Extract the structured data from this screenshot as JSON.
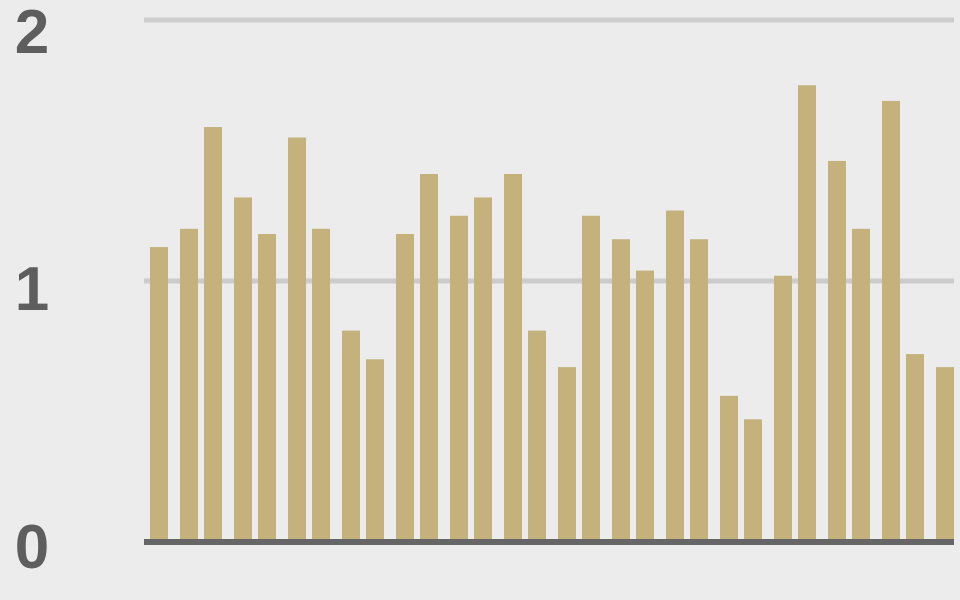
{
  "chart_data": {
    "type": "bar",
    "title": "",
    "xlabel": "",
    "ylabel": "",
    "ylim": [
      0,
      2
    ],
    "yticks": [
      "0",
      "1",
      "2"
    ],
    "grid": true,
    "colors": {
      "bar": "#c5b17b",
      "grid": "#cccccc",
      "axis": "#666666",
      "background": "#ececec",
      "tick_label": "#5e5e5e"
    },
    "values": [
      1.13,
      1.2,
      1.59,
      1.32,
      1.18,
      1.55,
      1.2,
      0.81,
      0.7,
      1.18,
      1.41,
      1.25,
      1.32,
      1.41,
      0.81,
      0.67,
      1.25,
      1.16,
      1.04,
      1.27,
      1.16,
      0.56,
      0.47,
      1.02,
      1.75,
      1.46,
      1.2,
      1.69,
      0.72,
      0.67
    ]
  }
}
